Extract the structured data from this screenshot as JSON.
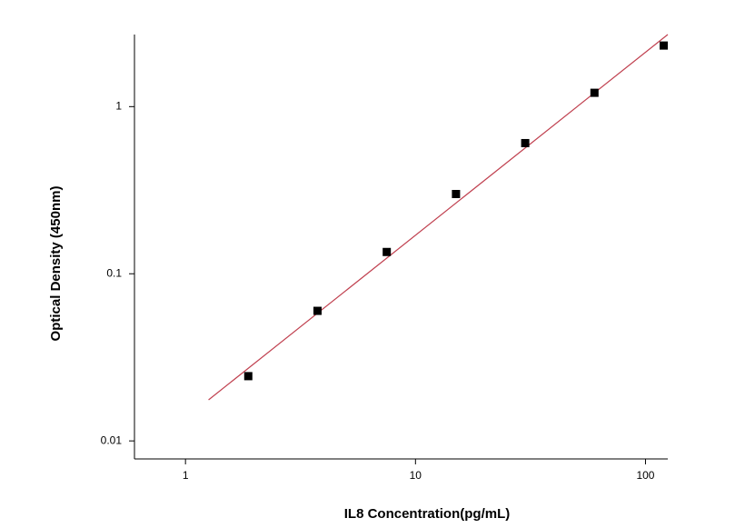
{
  "chart_data": {
    "type": "scatter",
    "x_label": "IL8  Concentration(pg/mL)",
    "y_label": "Optical Density (450nm)",
    "xscale": "log",
    "yscale": "log",
    "xlim": [
      0.6,
      125
    ],
    "ylim": [
      0.0078,
      2.7
    ],
    "xticks": [
      1,
      10,
      100
    ],
    "yticks": [
      0.01,
      0.1,
      1
    ],
    "series": [
      {
        "type": "scatter",
        "color": "#000000",
        "x": [
          1.875,
          3.75,
          7.5,
          15,
          30,
          60,
          120
        ],
        "values": [
          0.0244,
          0.06,
          0.135,
          0.3,
          0.605,
          1.21,
          2.32
        ]
      },
      {
        "type": "line",
        "color": "#c0404f",
        "x": [
          1.26,
          125
        ],
        "values": [
          0.0176,
          2.7
        ]
      }
    ]
  }
}
